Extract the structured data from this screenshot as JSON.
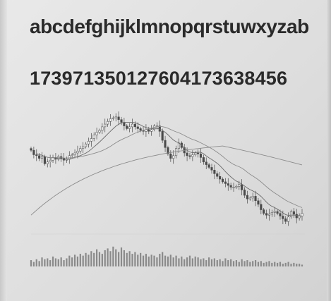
{
  "display": {
    "alphabet_line": "abcdefghijklmnopqrstuwxyzab",
    "digits_line": "173971350127604173638456",
    "high_annotation": "",
    "low_annotation": "",
    "volume_label": ""
  },
  "chart_data": {
    "type": "candlestick",
    "title": "",
    "xlabel": "",
    "ylabel": "",
    "grid": false,
    "colors": {
      "line": "#4a4a4a",
      "volume": "#8a8a8a",
      "ma_fast": "#6a6a6a",
      "ma_slow": "#8c8c8c"
    },
    "close": [
      212,
      207,
      206,
      203,
      205,
      197,
      199,
      201,
      204,
      202,
      205,
      203,
      201,
      202,
      206,
      207,
      209,
      211,
      214,
      216,
      219,
      222,
      225,
      229,
      232,
      234,
      238,
      241,
      244,
      247,
      248,
      249,
      246,
      243,
      239,
      236,
      238,
      241,
      238,
      236,
      234,
      233,
      235,
      233,
      235,
      239,
      239,
      233,
      223,
      215,
      208,
      203,
      206,
      214,
      220,
      215,
      209,
      206,
      205,
      207,
      209,
      208,
      204,
      199,
      196,
      193,
      190,
      186,
      183,
      180,
      177,
      175,
      173,
      171,
      171,
      172,
      174,
      168,
      162,
      158,
      159,
      161,
      156,
      152,
      146,
      142,
      140,
      141,
      143,
      144,
      142,
      139,
      136,
      133,
      138,
      144,
      141,
      137,
      139,
      142
    ],
    "volume": [
      7,
      5,
      8,
      6,
      10,
      8,
      9,
      7,
      11,
      9,
      8,
      10,
      7,
      9,
      12,
      10,
      13,
      11,
      14,
      12,
      15,
      13,
      17,
      15,
      19,
      16,
      14,
      18,
      20,
      17,
      22,
      19,
      16,
      21,
      18,
      15,
      17,
      14,
      16,
      13,
      15,
      12,
      14,
      11,
      13,
      12,
      10,
      14,
      16,
      12,
      11,
      13,
      10,
      12,
      9,
      11,
      8,
      10,
      12,
      9,
      11,
      10,
      8,
      9,
      7,
      10,
      8,
      9,
      7,
      8,
      6,
      9,
      7,
      8,
      6,
      7,
      5,
      8,
      6,
      7,
      5,
      6,
      7,
      5,
      6,
      4,
      5,
      6,
      4,
      5,
      4,
      5,
      3,
      4,
      5,
      3,
      4,
      3,
      3,
      2
    ],
    "volume_scale": [
      0,
      25
    ]
  }
}
